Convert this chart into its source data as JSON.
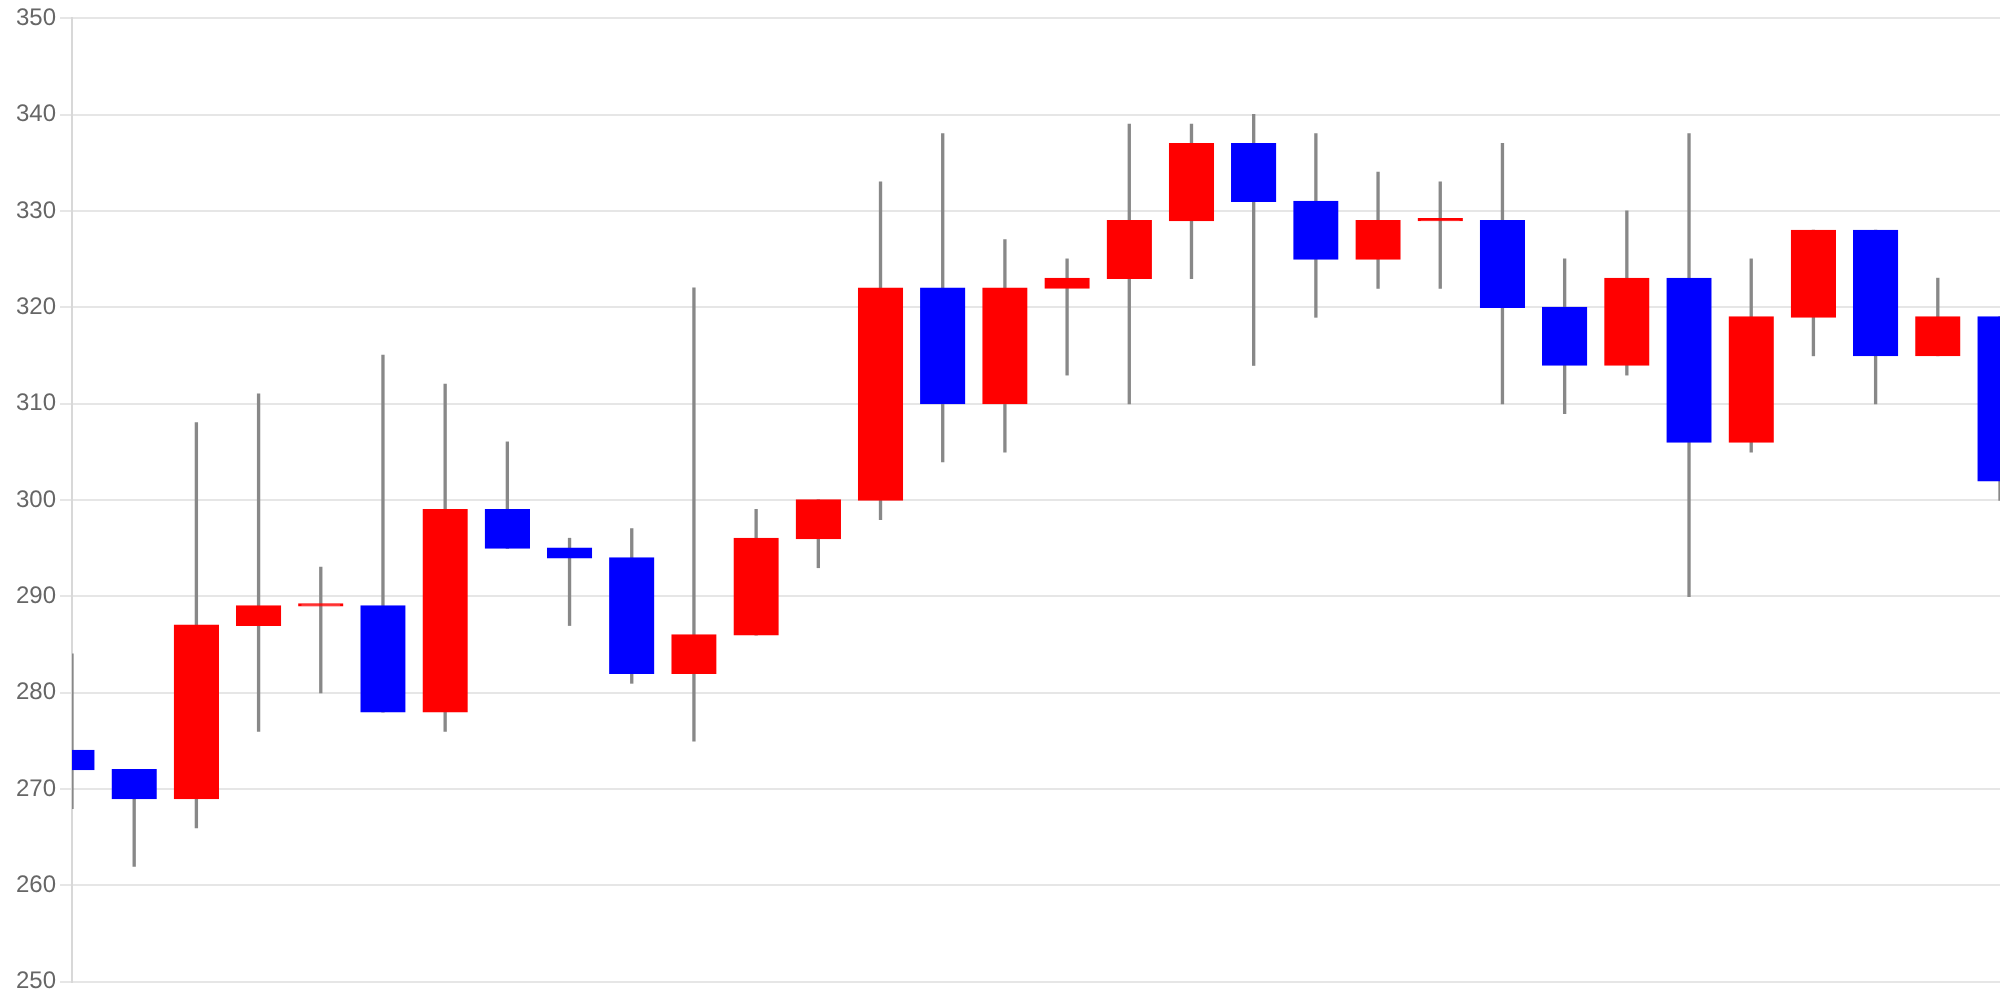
{
  "chart_data": {
    "type": "candlestick",
    "categories": [
      null,
      null,
      null,
      null,
      null,
      null,
      null,
      null,
      null,
      null,
      null,
      null,
      null,
      null,
      null,
      null,
      null,
      null,
      null,
      null,
      null,
      null,
      null,
      null,
      null,
      null,
      null,
      null,
      null,
      null,
      null,
      null
    ],
    "ohlc": [
      [
        274,
        284,
        268,
        272
      ],
      [
        272,
        272,
        262,
        269
      ],
      [
        269,
        308,
        266,
        287
      ],
      [
        287,
        311,
        276,
        289
      ],
      [
        289,
        293,
        280,
        289
      ],
      [
        289,
        315,
        278,
        278
      ],
      [
        278,
        312,
        276,
        299
      ],
      [
        299,
        306,
        295,
        295
      ],
      [
        295,
        296,
        287,
        294
      ],
      [
        294,
        297,
        281,
        282
      ],
      [
        282,
        322,
        275,
        286
      ],
      [
        286,
        299,
        286,
        296
      ],
      [
        296,
        300,
        293,
        300
      ],
      [
        300,
        333,
        298,
        322
      ],
      [
        322,
        338,
        304,
        310
      ],
      [
        310,
        327,
        305,
        322
      ],
      [
        322,
        325,
        313,
        323
      ],
      [
        323,
        339,
        310,
        329
      ],
      [
        329,
        339,
        323,
        337
      ],
      [
        337,
        340,
        314,
        331
      ],
      [
        331,
        338,
        319,
        325
      ],
      [
        325,
        334,
        322,
        329
      ],
      [
        329,
        333,
        322,
        329
      ],
      [
        329,
        337,
        310,
        320
      ],
      [
        320,
        325,
        309,
        314
      ],
      [
        314,
        330,
        313,
        323
      ],
      [
        323,
        338,
        290,
        306
      ],
      [
        306,
        325,
        305,
        319
      ],
      [
        319,
        328,
        315,
        328
      ],
      [
        328,
        328,
        310,
        315
      ],
      [
        315,
        323,
        315,
        319
      ],
      [
        319,
        319,
        300,
        302
      ]
    ],
    "colors": [
      "#0000ff",
      "#0000ff",
      "#ff0000",
      "#ff0000",
      "#ff0000",
      "#0000ff",
      "#ff0000",
      "#0000ff",
      "#0000ff",
      "#0000ff",
      "#ff0000",
      "#ff0000",
      "#ff0000",
      "#ff0000",
      "#0000ff",
      "#ff0000",
      "#ff0000",
      "#ff0000",
      "#ff0000",
      "#0000ff",
      "#0000ff",
      "#ff0000",
      "#ff0000",
      "#0000ff",
      "#0000ff",
      "#ff0000",
      "#0000ff",
      "#ff0000",
      "#ff0000",
      "#0000ff",
      "#ff0000",
      "#0000ff"
    ],
    "ylim": [
      250,
      350
    ],
    "yticks": [
      250,
      260,
      270,
      280,
      290,
      300,
      310,
      320,
      330,
      340,
      350
    ],
    "grid": true,
    "tick_labels": "y"
  }
}
